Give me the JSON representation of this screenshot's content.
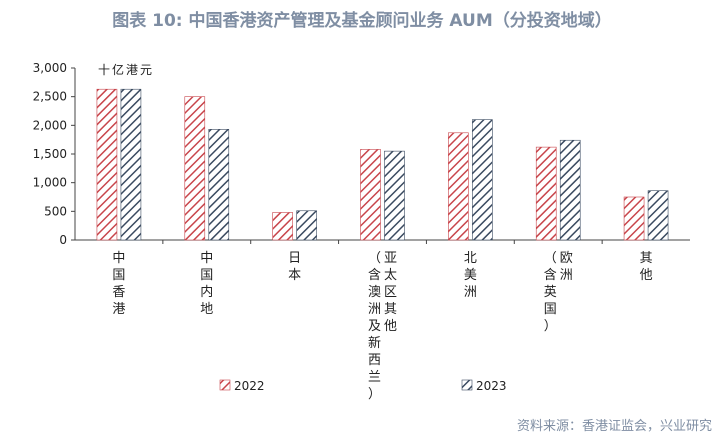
{
  "chart_data": {
    "type": "bar",
    "title": "图表 10: 中国香港资产管理及基金顾问业务 AUM（分投资地域）",
    "unit_label": "十亿港元",
    "ylim": [
      0,
      3000
    ],
    "yticks": [
      0,
      500,
      1000,
      1500,
      2000,
      2500,
      3000
    ],
    "ytick_labels": [
      "0",
      "500",
      "1,000",
      "1,500",
      "2,000",
      "2,500",
      "3,000"
    ],
    "categories": [
      [
        "中国香港"
      ],
      [
        "中国内地"
      ],
      [
        "日本"
      ],
      [
        "亚太区其他",
        "（含澳洲及新西兰）"
      ],
      [
        "北美洲"
      ],
      [
        "欧洲",
        "（含英国）"
      ],
      [
        "其他"
      ]
    ],
    "series": [
      {
        "name": "2022",
        "values": [
          2630,
          2500,
          480,
          1580,
          1870,
          1620,
          750
        ]
      },
      {
        "name": "2023",
        "values": [
          2630,
          1930,
          510,
          1550,
          2100,
          1740,
          860
        ]
      }
    ],
    "grid": false,
    "legend_position": "bottom"
  },
  "colors": {
    "series_2022": "#c8454b",
    "series_2023": "#3a4a60",
    "axis": "#444444",
    "title": "#7f8ea3"
  },
  "source": "资料来源：香港证监会，兴业研究"
}
